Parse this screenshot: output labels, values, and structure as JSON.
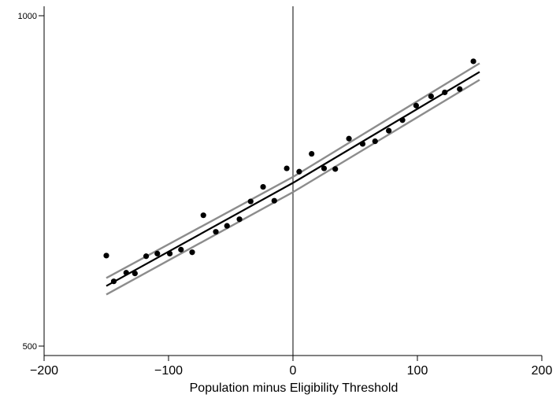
{
  "chart_data": {
    "type": "scatter",
    "title": "",
    "xlabel": "Population minus Eligibility Threshold",
    "ylabel": "",
    "xlim": [
      -200,
      200
    ],
    "ylim": [
      500,
      1000
    ],
    "x_ticks": [
      "-200",
      "-100",
      "0",
      "100",
      "200"
    ],
    "y_ticks": [
      "500",
      "1000"
    ],
    "threshold_x": 0,
    "grid": false,
    "colors": {
      "points": "#000000",
      "fit": "#000000",
      "ci": "#8c8c8c",
      "axis": "#000000",
      "threshold": "#000000"
    },
    "points": [
      {
        "x": -150,
        "y": 637
      },
      {
        "x": -144,
        "y": 598
      },
      {
        "x": -134,
        "y": 611
      },
      {
        "x": -127,
        "y": 610
      },
      {
        "x": -118,
        "y": 636
      },
      {
        "x": -109,
        "y": 640
      },
      {
        "x": -99,
        "y": 640
      },
      {
        "x": -90,
        "y": 646
      },
      {
        "x": -81,
        "y": 642
      },
      {
        "x": -72,
        "y": 698
      },
      {
        "x": -62,
        "y": 673
      },
      {
        "x": -53,
        "y": 682
      },
      {
        "x": -43,
        "y": 692
      },
      {
        "x": -34,
        "y": 719
      },
      {
        "x": -24,
        "y": 741
      },
      {
        "x": -15,
        "y": 720
      },
      {
        "x": -5,
        "y": 769
      },
      {
        "x": 5,
        "y": 764
      },
      {
        "x": 15,
        "y": 791
      },
      {
        "x": 25,
        "y": 769
      },
      {
        "x": 34,
        "y": 768
      },
      {
        "x": 45,
        "y": 814
      },
      {
        "x": 56,
        "y": 806
      },
      {
        "x": 66,
        "y": 810
      },
      {
        "x": 77,
        "y": 826
      },
      {
        "x": 88,
        "y": 842
      },
      {
        "x": 99,
        "y": 864
      },
      {
        "x": 111,
        "y": 878
      },
      {
        "x": 122,
        "y": 884
      },
      {
        "x": 134,
        "y": 889
      },
      {
        "x": 145,
        "y": 931
      }
    ],
    "fit_lines": [
      {
        "role": "fit",
        "segments": [
          [
            [
              -150,
              591
            ],
            [
              0,
              747
            ]
          ],
          [
            [
              0,
              747
            ],
            [
              150,
              915
            ]
          ]
        ]
      },
      {
        "role": "ci-upper",
        "segments": [
          [
            [
              -150,
              603
            ],
            [
              0,
              756
            ]
          ],
          [
            [
              0,
              756
            ],
            [
              150,
              928
            ]
          ]
        ]
      },
      {
        "role": "ci-lower",
        "segments": [
          [
            [
              -150,
              578
            ],
            [
              0,
              733
            ]
          ],
          [
            [
              0,
              733
            ],
            [
              150,
              903
            ]
          ]
        ]
      }
    ]
  }
}
